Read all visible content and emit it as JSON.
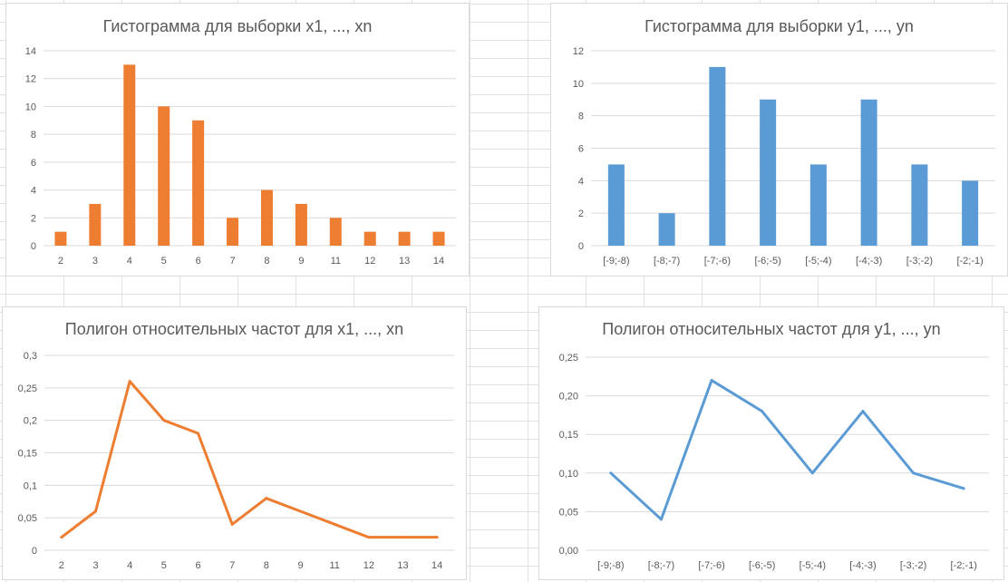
{
  "colors": {
    "orange": "#ED7D31",
    "blue": "#5B9BD5",
    "grid": "#d9d9d9",
    "text": "#595959"
  },
  "chart_data": [
    {
      "type": "bar",
      "title": "Гистограмма для выборки x1, ..., xn",
      "categories": [
        "2",
        "3",
        "4",
        "5",
        "6",
        "7",
        "8",
        "9",
        "11",
        "12",
        "13",
        "14"
      ],
      "values": [
        1,
        3,
        13,
        10,
        9,
        2,
        4,
        3,
        2,
        1,
        1,
        1
      ],
      "ylim": [
        0,
        14
      ],
      "yticks": [
        "0",
        "2",
        "4",
        "6",
        "8",
        "10",
        "12",
        "14"
      ],
      "color": "#ED7D31",
      "grid": true
    },
    {
      "type": "bar",
      "title": "Гистограмма для выборки y1, ..., yn",
      "categories": [
        "[-9;-8)",
        "[-8;-7)",
        "[-7;-6)",
        "[-6;-5)",
        "[-5;-4)",
        "[-4;-3)",
        "[-3;-2)",
        "[-2;-1)"
      ],
      "values": [
        5,
        2,
        11,
        9,
        5,
        9,
        5,
        4
      ],
      "ylim": [
        0,
        12
      ],
      "yticks": [
        "0",
        "2",
        "4",
        "6",
        "8",
        "10",
        "12"
      ],
      "color": "#5B9BD5",
      "grid": true
    },
    {
      "type": "line",
      "title": "Полигон относительных частот для x1, ..., xn",
      "categories": [
        "2",
        "3",
        "4",
        "5",
        "6",
        "7",
        "8",
        "9",
        "11",
        "12",
        "13",
        "14"
      ],
      "values": [
        0.02,
        0.06,
        0.26,
        0.2,
        0.18,
        0.04,
        0.08,
        0.06,
        0.04,
        0.02,
        0.02,
        0.02
      ],
      "ylim": [
        0,
        0.3
      ],
      "yticks": [
        "0",
        "0,05",
        "0,1",
        "0,15",
        "0,2",
        "0,25",
        "0,3"
      ],
      "color": "#ED7D31",
      "grid": true
    },
    {
      "type": "line",
      "title": "Полигон относительных частот для y1, ..., yn",
      "categories": [
        "[-9;-8)",
        "[-8;-7)",
        "[-7;-6)",
        "[-6;-5)",
        "[-5;-4)",
        "[-4;-3)",
        "[-3;-2)",
        "[-2;-1)"
      ],
      "values": [
        0.1,
        0.04,
        0.22,
        0.18,
        0.1,
        0.18,
        0.1,
        0.08
      ],
      "ylim": [
        0,
        0.25
      ],
      "yticks": [
        "0,00",
        "0,05",
        "0,10",
        "0,15",
        "0,20",
        "0,25"
      ],
      "color": "#5B9BD5",
      "grid": true
    }
  ]
}
